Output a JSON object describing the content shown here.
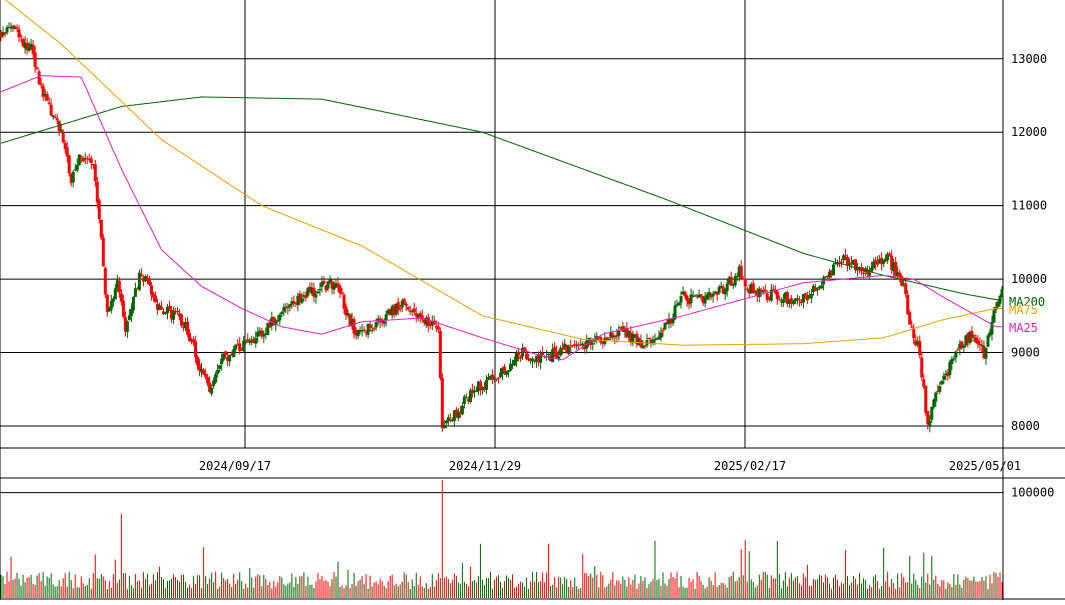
{
  "chart_data": [
    {
      "type": "candlestick",
      "title": "",
      "xlabel": "",
      "ylabel": "",
      "x_tick_labels": [
        "2024/09/17",
        "2024/11/29",
        "2025/02/17",
        "2025/05/01"
      ],
      "y_ticks": [
        8000,
        9000,
        10000,
        11000,
        12000,
        13000
      ],
      "ylim": [
        7700,
        13800
      ],
      "grid": true,
      "legend": [
        {
          "name": "MA200",
          "color": "#006400"
        },
        {
          "name": "MA75",
          "color": "#e8a000"
        },
        {
          "name": "MA25",
          "color": "#e020c0"
        }
      ],
      "up_color": "#006400",
      "down_color": "#ff0000",
      "ma200_anchors": [
        [
          0,
          11850
        ],
        [
          60,
          12350
        ],
        [
          100,
          12480
        ],
        [
          160,
          12450
        ],
        [
          240,
          12000
        ],
        [
          330,
          11100
        ],
        [
          400,
          10350
        ],
        [
          440,
          10050
        ],
        [
          480,
          9800
        ],
        [
          496,
          9720
        ]
      ],
      "ma75_anchors": [
        [
          0,
          13850
        ],
        [
          30,
          13200
        ],
        [
          80,
          11900
        ],
        [
          130,
          11000
        ],
        [
          180,
          10450
        ],
        [
          240,
          9500
        ],
        [
          290,
          9180
        ],
        [
          340,
          9100
        ],
        [
          400,
          9120
        ],
        [
          440,
          9200
        ],
        [
          470,
          9450
        ],
        [
          496,
          9600
        ]
      ],
      "ma25_anchors": [
        [
          0,
          12550
        ],
        [
          20,
          12770
        ],
        [
          40,
          12750
        ],
        [
          60,
          11500
        ],
        [
          80,
          10400
        ],
        [
          100,
          9900
        ],
        [
          120,
          9600
        ],
        [
          140,
          9350
        ],
        [
          160,
          9250
        ],
        [
          180,
          9420
        ],
        [
          210,
          9470
        ],
        [
          240,
          9200
        ],
        [
          270,
          8950
        ],
        [
          280,
          8900
        ],
        [
          300,
          9250
        ],
        [
          340,
          9500
        ],
        [
          360,
          9650
        ],
        [
          380,
          9800
        ],
        [
          400,
          9950
        ],
        [
          420,
          10000
        ],
        [
          440,
          10050
        ],
        [
          455,
          10000
        ],
        [
          470,
          9750
        ],
        [
          485,
          9520
        ],
        [
          496,
          9350
        ]
      ],
      "close_anchors": [
        [
          0,
          13350
        ],
        [
          5,
          13500
        ],
        [
          10,
          13250
        ],
        [
          15,
          13150
        ],
        [
          20,
          12600
        ],
        [
          30,
          12000
        ],
        [
          35,
          11350
        ],
        [
          40,
          11700
        ],
        [
          46,
          11500
        ],
        [
          50,
          10600
        ],
        [
          53,
          9500
        ],
        [
          56,
          9800
        ],
        [
          58,
          10050
        ],
        [
          62,
          9350
        ],
        [
          70,
          10100
        ],
        [
          78,
          9650
        ],
        [
          84,
          9550
        ],
        [
          92,
          9400
        ],
        [
          98,
          8900
        ],
        [
          104,
          8450
        ],
        [
          110,
          8900
        ],
        [
          118,
          9050
        ],
        [
          124,
          9150
        ],
        [
          130,
          9250
        ],
        [
          140,
          9550
        ],
        [
          150,
          9750
        ],
        [
          160,
          9900
        ],
        [
          168,
          9950
        ],
        [
          172,
          9500
        ],
        [
          178,
          9250
        ],
        [
          186,
          9400
        ],
        [
          194,
          9550
        ],
        [
          200,
          9650
        ],
        [
          212,
          9450
        ],
        [
          218,
          9300
        ],
        [
          220,
          8000
        ],
        [
          226,
          8150
        ],
        [
          236,
          8500
        ],
        [
          248,
          8700
        ],
        [
          260,
          9000
        ],
        [
          270,
          8900
        ],
        [
          280,
          9050
        ],
        [
          290,
          9100
        ],
        [
          300,
          9200
        ],
        [
          310,
          9300
        ],
        [
          320,
          9100
        ],
        [
          330,
          9300
        ],
        [
          340,
          9750
        ],
        [
          350,
          9700
        ],
        [
          360,
          9850
        ],
        [
          368,
          10100
        ],
        [
          372,
          9900
        ],
        [
          380,
          9800
        ],
        [
          390,
          9750
        ],
        [
          398,
          9700
        ],
        [
          410,
          9950
        ],
        [
          420,
          10300
        ],
        [
          430,
          10100
        ],
        [
          436,
          10200
        ],
        [
          442,
          10300
        ],
        [
          450,
          9900
        ],
        [
          454,
          9300
        ],
        [
          458,
          9000
        ],
        [
          462,
          7950
        ],
        [
          466,
          8500
        ],
        [
          472,
          8750
        ],
        [
          478,
          9100
        ],
        [
          484,
          9250
        ],
        [
          490,
          9000
        ],
        [
          496,
          9650
        ],
        [
          498,
          9800
        ]
      ],
      "volume_ticks": [
        100000
      ],
      "volume_ylim": [
        0,
        112000
      ],
      "volume_base": 14000,
      "volume_spikes": [
        [
          60,
          80000
        ],
        [
          220,
          112000
        ],
        [
          371,
          55000
        ],
        [
          453,
          40000
        ],
        [
          60,
          80000
        ]
      ]
    }
  ]
}
